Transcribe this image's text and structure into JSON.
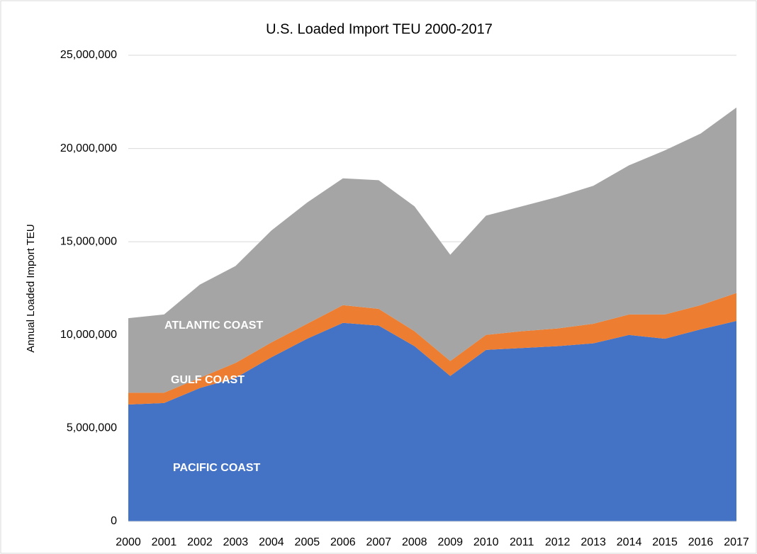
{
  "chart_data": {
    "type": "stacked_area",
    "title": "U.S. Loaded Import TEU 2000-2017",
    "y_label": "Annual Loaded Import TEU",
    "categories": [
      "2000",
      "2001",
      "2002",
      "2003",
      "2004",
      "2005",
      "2006",
      "2007",
      "2008",
      "2009",
      "2010",
      "2011",
      "2012",
      "2013",
      "2014",
      "2015",
      "2016",
      "2017"
    ],
    "series": [
      {
        "name": "PACIFIC COAST",
        "color": "#4472c4",
        "values": [
          6270000,
          6350000,
          7150000,
          7700000,
          8800000,
          9800000,
          10650000,
          10500000,
          9400000,
          7800000,
          9200000,
          9300000,
          9400000,
          9550000,
          10000000,
          9800000,
          10300000,
          10750000
        ]
      },
      {
        "name": "GULF COAST",
        "color": "#ed7d31",
        "values": [
          630000,
          550000,
          550000,
          800000,
          800000,
          800000,
          950000,
          900000,
          800000,
          800000,
          800000,
          900000,
          950000,
          1050000,
          1100000,
          1300000,
          1300000,
          1500000
        ]
      },
      {
        "name": "ATLANTIC COAST",
        "color": "#a5a5a5",
        "values": [
          4000000,
          4200000,
          5000000,
          5200000,
          6000000,
          6500000,
          6800000,
          6900000,
          6700000,
          5700000,
          6400000,
          6700000,
          7050000,
          7400000,
          8000000,
          8800000,
          9200000,
          9950000
        ]
      }
    ],
    "ylim": [
      0,
      25000000
    ],
    "yticks": [
      0,
      {
        "value": 5000000,
        "label": "5,000,000"
      },
      {
        "value": 10000000,
        "label": "10,000,000"
      },
      {
        "value": 15000000,
        "label": "15,000,000"
      },
      {
        "value": 20000000,
        "label": "20,000,000"
      },
      {
        "value": 25000000,
        "label": "25,000,000"
      }
    ],
    "grid": true
  }
}
